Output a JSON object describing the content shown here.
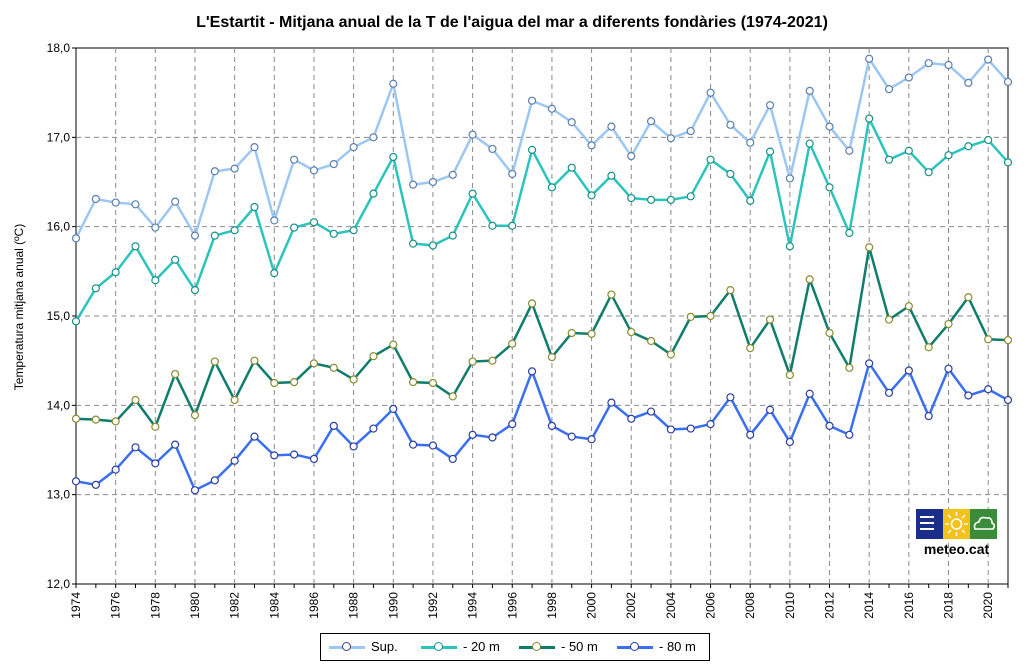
{
  "chart_data": {
    "type": "line",
    "title": "L'Estartit -  Mitjana anual de la T de l'aigua del mar a diferents fondàries (1974-2021)",
    "xlabel": "",
    "ylabel": "Temperatura mitjana anual (ºC)",
    "ylim": [
      12.0,
      18.0
    ],
    "yticks": [
      "12,0",
      "13,0",
      "14,0",
      "15,0",
      "16,0",
      "17,0",
      "18,0"
    ],
    "xlim": [
      1974,
      2021
    ],
    "xticks": [
      "1974",
      "1976",
      "1978",
      "1980",
      "1982",
      "1984",
      "1986",
      "1988",
      "1990",
      "1992",
      "1994",
      "1996",
      "1998",
      "2000",
      "2002",
      "2004",
      "2006",
      "2008",
      "2010",
      "2012",
      "2014",
      "2016",
      "2018",
      "2020"
    ],
    "grid": "dashed vertical and horizontal",
    "legend_position": "bottom",
    "x": [
      1974,
      1975,
      1976,
      1977,
      1978,
      1979,
      1980,
      1981,
      1982,
      1983,
      1984,
      1985,
      1986,
      1987,
      1988,
      1989,
      1990,
      1991,
      1992,
      1993,
      1994,
      1995,
      1996,
      1997,
      1998,
      1999,
      2000,
      2001,
      2002,
      2003,
      2004,
      2005,
      2006,
      2007,
      2008,
      2009,
      2010,
      2011,
      2012,
      2013,
      2014,
      2015,
      2016,
      2017,
      2018,
      2019,
      2020,
      2021
    ],
    "series": [
      {
        "name": "Sup.",
        "color": "#9cc7f2",
        "values": [
          15.87,
          16.31,
          16.27,
          16.25,
          15.99,
          16.28,
          15.9,
          16.62,
          16.65,
          16.89,
          16.07,
          16.75,
          16.63,
          16.7,
          16.89,
          17.0,
          17.6,
          16.47,
          16.5,
          16.58,
          17.03,
          16.87,
          16.59,
          17.41,
          17.32,
          17.17,
          16.91,
          17.12,
          16.79,
          17.18,
          16.99,
          17.07,
          17.5,
          17.14,
          16.94,
          17.36,
          16.54,
          17.52,
          17.12,
          16.85,
          17.88,
          17.54,
          17.67,
          17.83,
          17.81,
          17.61,
          17.87,
          17.62
        ]
      },
      {
        "name": "- 20 m",
        "color": "#2bc4bc",
        "values": [
          14.94,
          15.31,
          15.49,
          15.78,
          15.4,
          15.63,
          15.29,
          15.9,
          15.96,
          16.22,
          15.48,
          15.99,
          16.05,
          15.92,
          15.96,
          16.37,
          16.78,
          15.81,
          15.79,
          15.9,
          16.37,
          16.01,
          16.01,
          16.86,
          16.44,
          16.66,
          16.35,
          16.57,
          16.32,
          16.3,
          16.3,
          16.34,
          16.75,
          16.59,
          16.29,
          16.84,
          15.78,
          16.93,
          16.44,
          15.93,
          17.21,
          16.75,
          16.85,
          16.61,
          16.8,
          16.9,
          16.97,
          16.72
        ]
      },
      {
        "name": "- 50 m",
        "color": "#0f7c6c",
        "values": [
          13.85,
          13.84,
          13.82,
          14.06,
          13.76,
          14.35,
          13.89,
          14.49,
          14.06,
          14.5,
          14.25,
          14.26,
          14.47,
          14.42,
          14.29,
          14.55,
          14.68,
          14.26,
          14.25,
          14.1,
          14.49,
          14.5,
          14.69,
          15.14,
          14.54,
          14.81,
          14.8,
          15.24,
          14.82,
          14.72,
          14.57,
          14.99,
          15.0,
          15.29,
          14.64,
          14.96,
          14.34,
          15.41,
          14.81,
          14.42,
          15.77,
          14.96,
          15.11,
          14.65,
          14.91,
          15.21,
          14.74,
          14.73
        ]
      },
      {
        "name": "- 80 m",
        "color": "#3a6ff0",
        "values": [
          13.15,
          13.11,
          13.28,
          13.53,
          13.35,
          13.56,
          13.05,
          13.16,
          13.38,
          13.65,
          13.44,
          13.45,
          13.4,
          13.77,
          13.54,
          13.74,
          13.96,
          13.56,
          13.55,
          13.4,
          13.67,
          13.64,
          13.79,
          14.38,
          13.77,
          13.65,
          13.62,
          14.03,
          13.85,
          13.93,
          13.73,
          13.74,
          13.79,
          14.09,
          13.67,
          13.95,
          13.59,
          14.13,
          13.77,
          13.67,
          14.47,
          14.14,
          14.39,
          13.88,
          14.41,
          14.11,
          14.18,
          14.06
        ]
      }
    ]
  },
  "logo": {
    "text": "meteo.cat"
  }
}
